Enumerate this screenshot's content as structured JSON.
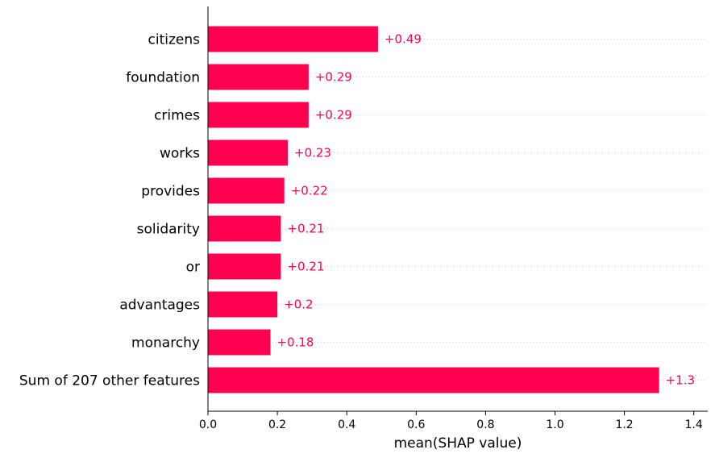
{
  "chart_data": {
    "type": "bar",
    "orientation": "horizontal",
    "categories": [
      "citizens",
      "foundation",
      "crimes",
      "works",
      "provides",
      "solidarity",
      "or",
      "advantages",
      "monarchy",
      "Sum of 207 other features"
    ],
    "values": [
      0.49,
      0.29,
      0.29,
      0.23,
      0.22,
      0.21,
      0.21,
      0.2,
      0.18,
      1.3
    ],
    "value_labels": [
      "+0.49",
      "+0.29",
      "+0.29",
      "+0.23",
      "+0.22",
      "+0.21",
      "+0.21",
      "+0.2",
      "+0.18",
      "+1.3"
    ],
    "xlabel": "mean(SHAP value)",
    "xlim": [
      0,
      1.43
    ],
    "xticks": [
      0.0,
      0.2,
      0.4,
      0.6,
      0.8,
      1.0,
      1.2,
      1.4
    ],
    "xtick_labels": [
      "0.0",
      "0.2",
      "0.4",
      "0.6",
      "0.8",
      "1.0",
      "1.2",
      "1.4"
    ],
    "grid": "horizontal dotted",
    "bar_color": "#ff0051",
    "label_color": "#ff0051"
  }
}
